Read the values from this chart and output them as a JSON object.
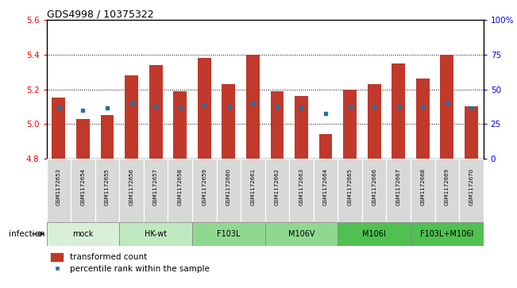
{
  "title": "GDS4998 / 10375322",
  "samples": [
    "GSM1172653",
    "GSM1172654",
    "GSM1172655",
    "GSM1172656",
    "GSM1172657",
    "GSM1172658",
    "GSM1172659",
    "GSM1172660",
    "GSM1172661",
    "GSM1172662",
    "GSM1172663",
    "GSM1172664",
    "GSM1172665",
    "GSM1172666",
    "GSM1172667",
    "GSM1172668",
    "GSM1172669",
    "GSM1172670"
  ],
  "bar_values": [
    5.15,
    5.03,
    5.05,
    5.28,
    5.34,
    5.19,
    5.38,
    5.23,
    5.4,
    5.19,
    5.16,
    4.94,
    5.2,
    5.23,
    5.35,
    5.26,
    5.4,
    5.1
  ],
  "percentile_values": [
    5.09,
    5.08,
    5.09,
    5.12,
    5.1,
    5.09,
    5.11,
    5.1,
    5.12,
    5.1,
    5.09,
    5.06,
    5.1,
    5.1,
    5.1,
    5.1,
    5.12,
    5.09
  ],
  "groups": [
    {
      "label": "mock",
      "start": 0,
      "end": 2,
      "color": "#d8f0d8"
    },
    {
      "label": "HK-wt",
      "start": 3,
      "end": 5,
      "color": "#c0e8c0"
    },
    {
      "label": "F103L",
      "start": 6,
      "end": 8,
      "color": "#90d890"
    },
    {
      "label": "M106V",
      "start": 9,
      "end": 11,
      "color": "#90d890"
    },
    {
      "label": "M106I",
      "start": 12,
      "end": 14,
      "color": "#50c050"
    },
    {
      "label": "F103L+M106I",
      "start": 15,
      "end": 17,
      "color": "#50c050"
    }
  ],
  "ylim": [
    4.8,
    5.6
  ],
  "yticks": [
    4.8,
    5.0,
    5.2,
    5.4,
    5.6
  ],
  "right_yticks": [
    0,
    25,
    50,
    75,
    100
  ],
  "bar_color": "#c0392b",
  "percentile_color": "#2471a3",
  "bar_width": 0.55,
  "sample_box_color": "#d8d8d8",
  "infection_label": "infection"
}
